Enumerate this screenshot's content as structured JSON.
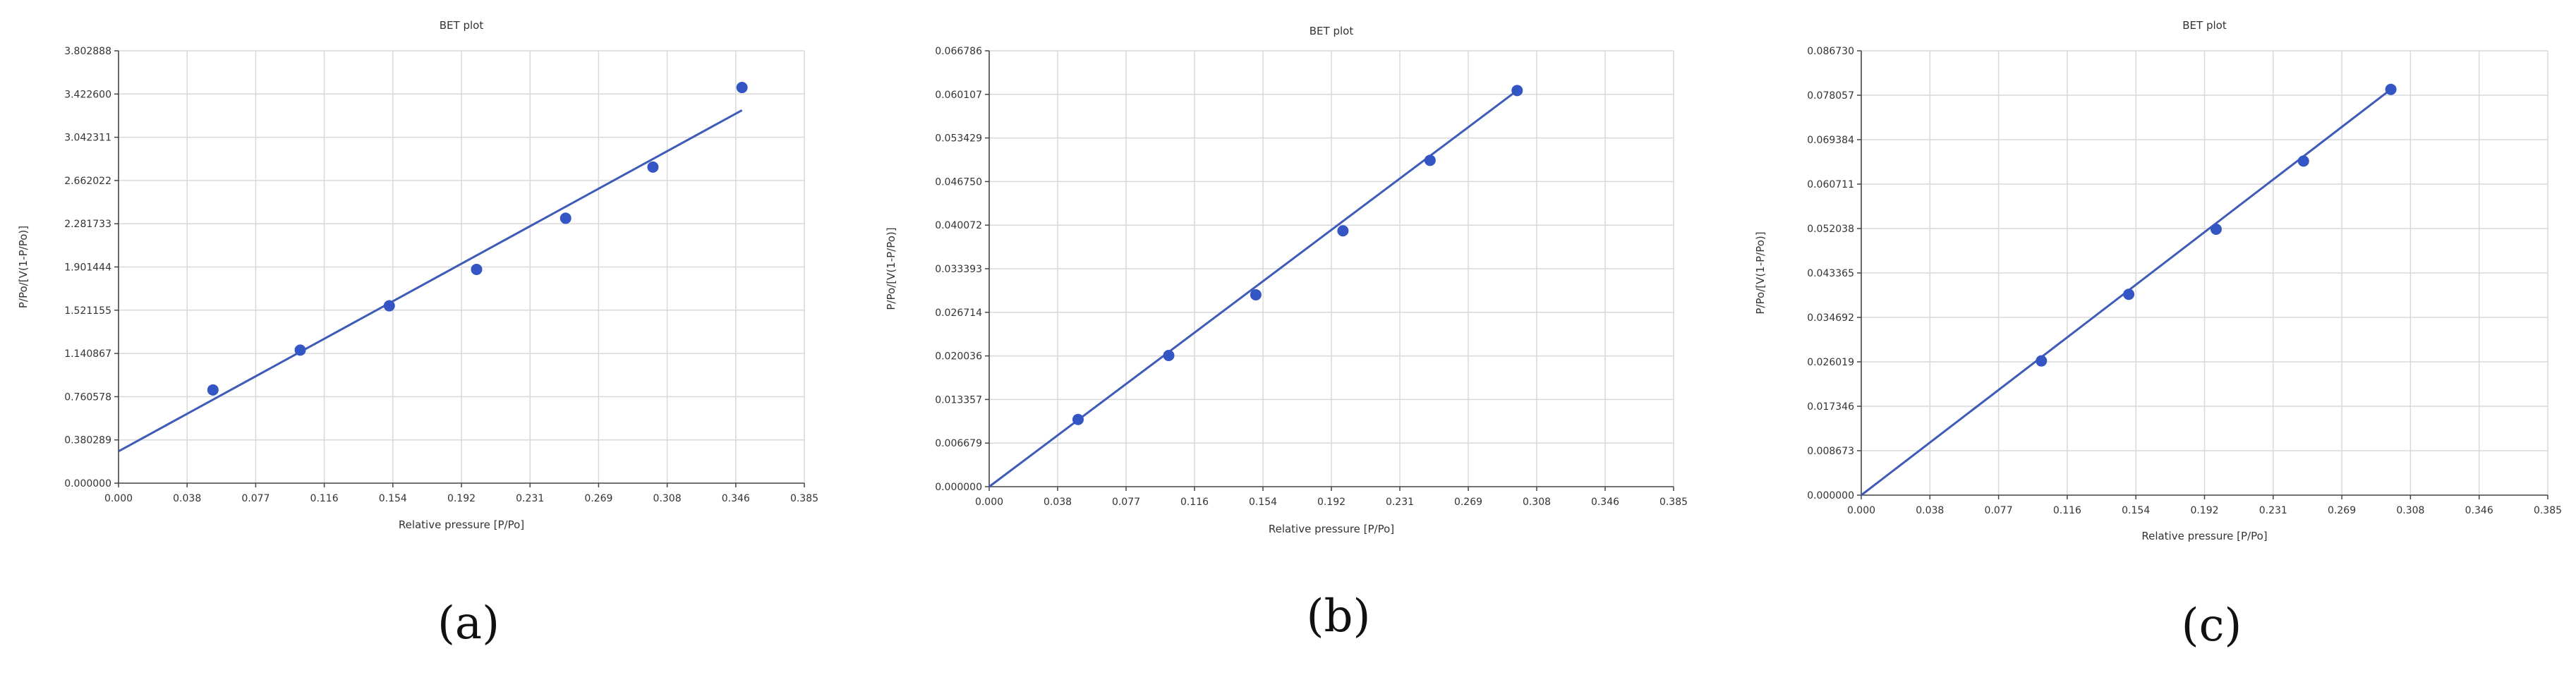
{
  "chart_data": [
    {
      "panel_label": "(a)",
      "type": "scatter",
      "title": "BET plot",
      "xlabel": "Relative pressure [P/Po]",
      "ylabel": "P/Po/[V(1-P/Po)]",
      "xlim": [
        0,
        0.385
      ],
      "ylim": [
        0,
        3.802888
      ],
      "xticks": [
        "0.000",
        "0.038",
        "0.077",
        "0.116",
        "0.154",
        "0.192",
        "0.231",
        "0.269",
        "0.308",
        "0.346",
        "0.385"
      ],
      "yticks": [
        "0.000000",
        "0.380289",
        "0.760578",
        "1.140867",
        "1.521155",
        "1.901444",
        "2.281733",
        "2.662022",
        "3.042311",
        "3.422600",
        "3.802888"
      ],
      "grid": true,
      "points": [
        {
          "x": 0.053,
          "y": 0.82
        },
        {
          "x": 0.102,
          "y": 1.17
        },
        {
          "x": 0.152,
          "y": 1.56
        },
        {
          "x": 0.201,
          "y": 1.88
        },
        {
          "x": 0.251,
          "y": 2.33
        },
        {
          "x": 0.3,
          "y": 2.78
        },
        {
          "x": 0.35,
          "y": 3.48
        }
      ],
      "fit_line": [
        {
          "x": 0.0,
          "y": 0.28
        },
        {
          "x": 0.35,
          "y": 3.28
        }
      ]
    },
    {
      "panel_label": "(b)",
      "type": "scatter",
      "title": "BET plot",
      "xlabel": "Relative pressure [P/Po]",
      "ylabel": "P/Po/[V(1-P/Po)]",
      "xlim": [
        0,
        0.385
      ],
      "ylim": [
        0,
        0.066786
      ],
      "xticks": [
        "0.000",
        "0.038",
        "0.077",
        "0.116",
        "0.154",
        "0.192",
        "0.231",
        "0.269",
        "0.308",
        "0.346",
        "0.385"
      ],
      "yticks": [
        "0.000000",
        "0.006679",
        "0.013357",
        "0.020036",
        "0.026714",
        "0.033393",
        "0.040072",
        "0.046750",
        "0.053429",
        "0.060107",
        "0.066786"
      ],
      "grid": true,
      "points": [
        {
          "x": 0.05,
          "y": 0.0103
        },
        {
          "x": 0.101,
          "y": 0.0201
        },
        {
          "x": 0.15,
          "y": 0.0294
        },
        {
          "x": 0.199,
          "y": 0.0392
        },
        {
          "x": 0.248,
          "y": 0.05
        },
        {
          "x": 0.297,
          "y": 0.0607
        }
      ],
      "fit_line": [
        {
          "x": 0.0,
          "y": 0.0
        },
        {
          "x": 0.297,
          "y": 0.0607
        }
      ]
    },
    {
      "panel_label": "(c)",
      "type": "scatter",
      "title": "BET plot",
      "xlabel": "Relative pressure [P/Po]",
      "ylabel": "P/Po/[V(1-P/Po)]",
      "xlim": [
        0,
        0.385
      ],
      "ylim": [
        0,
        0.08673
      ],
      "xticks": [
        "0.000",
        "0.038",
        "0.077",
        "0.116",
        "0.154",
        "0.192",
        "0.231",
        "0.269",
        "0.308",
        "0.346",
        "0.385"
      ],
      "yticks": [
        "0.000000",
        "0.008673",
        "0.017346",
        "0.026019",
        "0.034692",
        "0.043365",
        "0.052038",
        "0.060711",
        "0.069384",
        "0.078057",
        "0.086730"
      ],
      "grid": true,
      "points": [
        {
          "x": 0.101,
          "y": 0.0262
        },
        {
          "x": 0.15,
          "y": 0.0392
        },
        {
          "x": 0.199,
          "y": 0.0519
        },
        {
          "x": 0.248,
          "y": 0.0652
        },
        {
          "x": 0.297,
          "y": 0.0792
        }
      ],
      "fit_line": [
        {
          "x": 0.0,
          "y": 0.0
        },
        {
          "x": 0.297,
          "y": 0.0792
        }
      ]
    }
  ]
}
